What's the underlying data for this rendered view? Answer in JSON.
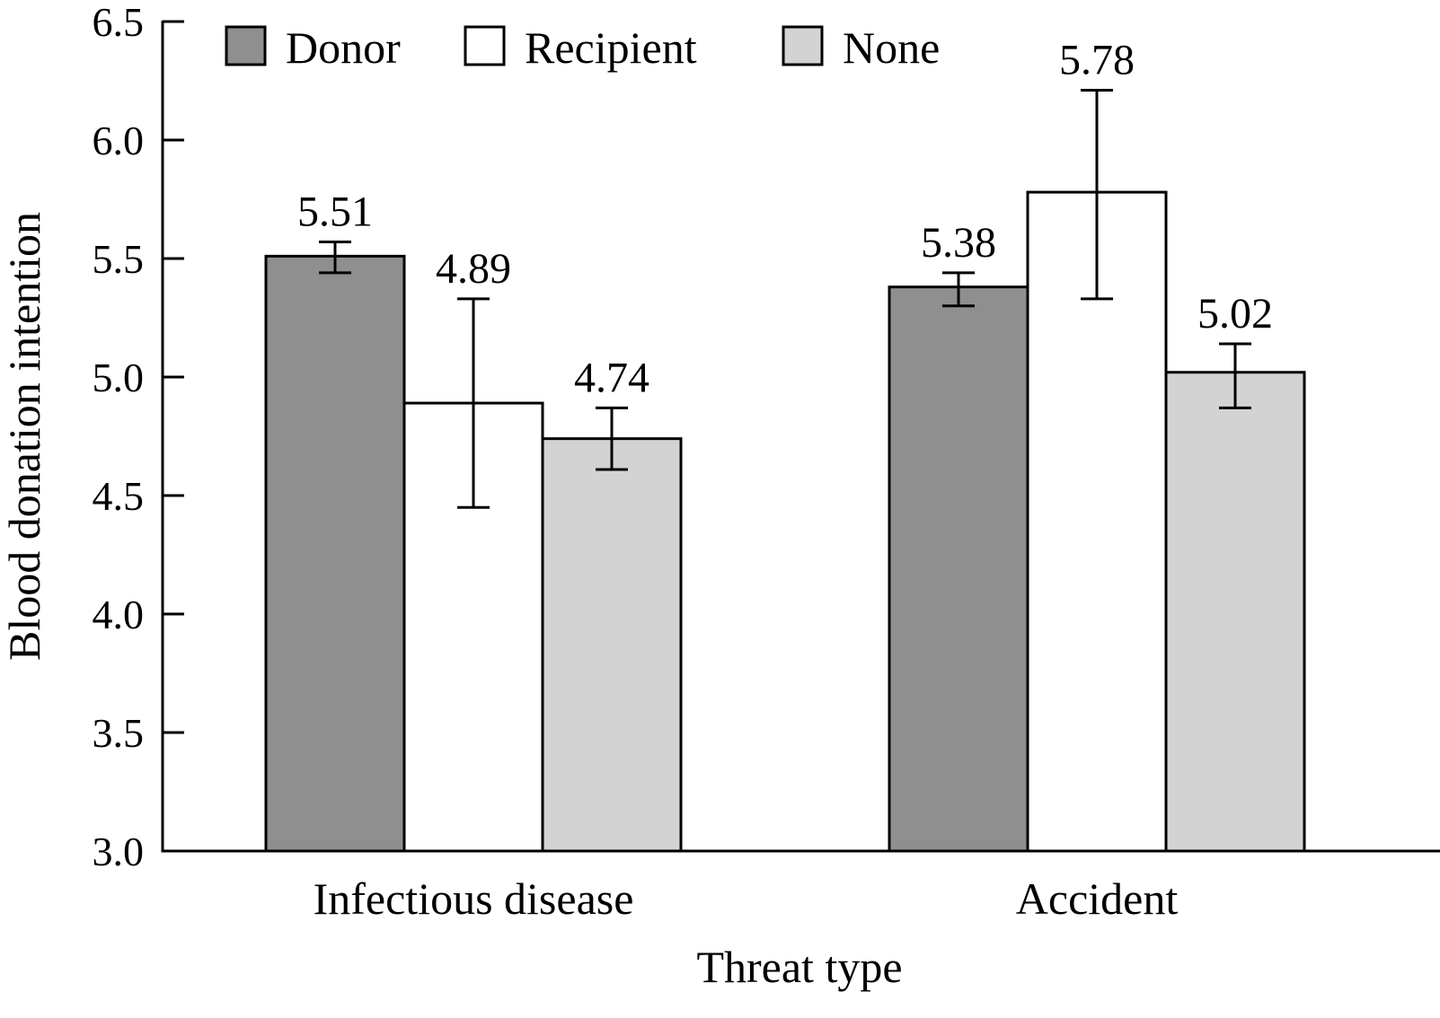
{
  "chart_data": {
    "type": "bar",
    "title": "",
    "xlabel": "Threat type",
    "ylabel": "Blood donation intention",
    "ylim": [
      3.0,
      6.5
    ],
    "yticks": [
      "3.0",
      "3.5",
      "4.0",
      "4.5",
      "5.0",
      "5.5",
      "6.0",
      "6.5"
    ],
    "ytick_values": [
      3.0,
      3.5,
      4.0,
      4.5,
      5.0,
      5.5,
      6.0,
      6.5
    ],
    "grid": false,
    "legend_position": "top-left",
    "categories": [
      "Infectious disease",
      "Accident"
    ],
    "series": [
      {
        "name": "Donor",
        "color": "#8f8f8f",
        "values": [
          5.51,
          5.38
        ],
        "labels": [
          "5.51",
          "5.38"
        ],
        "error_low": [
          5.44,
          5.3
        ],
        "error_high": [
          5.57,
          5.44
        ]
      },
      {
        "name": "Recipient",
        "color": "#ffffff",
        "values": [
          4.89,
          5.78
        ],
        "labels": [
          "4.89",
          "5.78"
        ],
        "error_low": [
          4.45,
          5.33
        ],
        "error_high": [
          5.33,
          6.21
        ]
      },
      {
        "name": "None",
        "color": "#d3d3d3",
        "values": [
          4.74,
          5.02
        ],
        "labels": [
          "4.74",
          "5.02"
        ],
        "error_low": [
          4.61,
          4.87
        ],
        "error_high": [
          4.87,
          5.14
        ]
      }
    ]
  }
}
